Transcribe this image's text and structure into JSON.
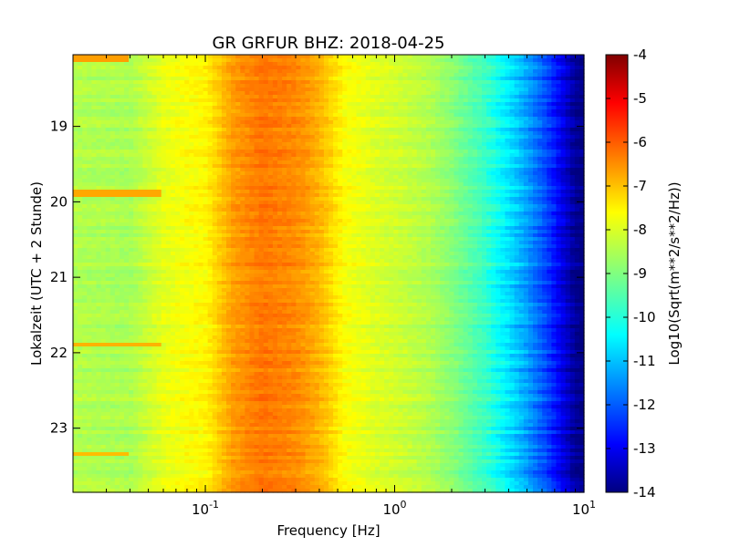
{
  "chart_data": {
    "type": "heatmap",
    "title": "GR GRFUR BHZ: 2018-04-25",
    "xlabel": "Frequency [Hz]",
    "ylabel": "Lokalzeit (UTC + 2 Stunde)",
    "colorbar_label": "Log10(Sqrt(m**2/s**2/Hz))",
    "x_scale": "log",
    "xlim": [
      0.02,
      10
    ],
    "ylim": [
      18.05,
      23.85
    ],
    "y_inverted": true,
    "x_ticks": [
      {
        "value": 0.1,
        "base": "10",
        "exp": "-1"
      },
      {
        "value": 1,
        "base": "10",
        "exp": "0"
      },
      {
        "value": 10,
        "base": "10",
        "exp": "1"
      }
    ],
    "y_ticks": [
      {
        "value": 19,
        "label": "19"
      },
      {
        "value": 20,
        "label": "20"
      },
      {
        "value": 21,
        "label": "21"
      },
      {
        "value": 22,
        "label": "22"
      },
      {
        "value": 23,
        "label": "23"
      }
    ],
    "colorbar_range": [
      -14,
      -4
    ],
    "colorbar_ticks": [
      "-4",
      "-5",
      "-6",
      "-7",
      "-8",
      "-9",
      "-10",
      "-11",
      "-12",
      "-13",
      "-14"
    ],
    "colormap": "jet",
    "spectrum_profile": {
      "frequency_hz": [
        0.02,
        0.04,
        0.06,
        0.08,
        0.1,
        0.14,
        0.2,
        0.3,
        0.4,
        0.55,
        0.8,
        1.0,
        1.5,
        2.0,
        3.0,
        4.0,
        5.0,
        6.5,
        8.0,
        9.0,
        10.0
      ],
      "log10_amplitude": [
        -8.5,
        -8.6,
        -8.0,
        -7.8,
        -7.7,
        -6.8,
        -6.4,
        -6.6,
        -7.0,
        -7.8,
        -8.1,
        -8.2,
        -8.5,
        -8.9,
        -9.7,
        -10.5,
        -11.2,
        -12.2,
        -13.2,
        -13.8,
        -14.0
      ]
    },
    "bright_rows": [
      {
        "hour": 18.1,
        "f_max": 0.04,
        "log10_amplitude": -6.8
      },
      {
        "hour": 19.88,
        "f_max": 0.06,
        "log10_amplitude": -6.9
      },
      {
        "hour": 21.9,
        "f_max": 0.06,
        "log10_amplitude": -7.0
      },
      {
        "hour": 23.33,
        "f_max": 0.04,
        "log10_amplitude": -7.1
      }
    ]
  }
}
